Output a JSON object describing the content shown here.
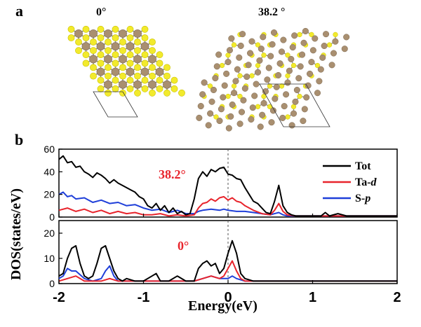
{
  "panel_a": {
    "label": "a",
    "left_structure_angle": "0°",
    "right_structure_angle": "38.2 °",
    "colors": {
      "metal_atom": "#a98f70",
      "chalcogen_atom": "#f2ea2c",
      "bond": "#8a8a8a",
      "unit_cell": "#333333"
    }
  },
  "panel_b": {
    "label": "b"
  },
  "chart_data": [
    {
      "type": "line",
      "annotation": "38.2°",
      "annotation_color": "#e8242c",
      "ylim": [
        0,
        60
      ],
      "yticks": [
        0,
        20,
        40,
        60
      ],
      "xlim": [
        -2,
        2
      ],
      "fermi_level": 0,
      "series": [
        {
          "name": "Tot",
          "color": "#000000",
          "x": [
            -2.0,
            -1.95,
            -1.9,
            -1.85,
            -1.8,
            -1.75,
            -1.7,
            -1.65,
            -1.6,
            -1.55,
            -1.5,
            -1.45,
            -1.4,
            -1.35,
            -1.3,
            -1.25,
            -1.2,
            -1.15,
            -1.1,
            -1.05,
            -1.0,
            -0.95,
            -0.9,
            -0.85,
            -0.8,
            -0.75,
            -0.7,
            -0.65,
            -0.6,
            -0.55,
            -0.5,
            -0.45,
            -0.4,
            -0.35,
            -0.3,
            -0.25,
            -0.2,
            -0.15,
            -0.1,
            -0.05,
            0.0,
            0.05,
            0.1,
            0.15,
            0.2,
            0.25,
            0.3,
            0.35,
            0.4,
            0.45,
            0.5,
            0.55,
            0.6,
            0.65,
            0.7,
            0.75,
            0.8,
            0.9,
            1.0,
            1.1,
            1.15,
            1.2,
            1.3,
            1.4,
            1.5,
            1.6,
            1.7,
            1.8,
            1.9,
            2.0
          ],
          "y": [
            51,
            54,
            48,
            49,
            44,
            45,
            40,
            38,
            35,
            39,
            37,
            34,
            30,
            33,
            30,
            28,
            26,
            24,
            22,
            18,
            16,
            10,
            8,
            12,
            6,
            10,
            4,
            8,
            3,
            5,
            2,
            3,
            16,
            34,
            40,
            36,
            42,
            40,
            43,
            44,
            38,
            37,
            34,
            33,
            26,
            20,
            14,
            12,
            8,
            4,
            3,
            14,
            28,
            10,
            4,
            2,
            1,
            1,
            1,
            1,
            4,
            1,
            3,
            1,
            1,
            1,
            1,
            1,
            1,
            1
          ]
        },
        {
          "name": "Ta-d",
          "color": "#e8242c",
          "x": [
            -2.0,
            -1.9,
            -1.8,
            -1.7,
            -1.6,
            -1.5,
            -1.4,
            -1.3,
            -1.2,
            -1.1,
            -1.0,
            -0.9,
            -0.8,
            -0.7,
            -0.6,
            -0.5,
            -0.4,
            -0.35,
            -0.3,
            -0.25,
            -0.2,
            -0.15,
            -0.1,
            -0.05,
            0.0,
            0.05,
            0.1,
            0.15,
            0.2,
            0.3,
            0.4,
            0.5,
            0.55,
            0.6,
            0.65,
            0.7,
            0.8,
            1.0,
            1.2,
            1.4,
            1.6,
            1.8,
            2.0
          ],
          "y": [
            6,
            8,
            5,
            7,
            4,
            6,
            3,
            5,
            3,
            4,
            2,
            2,
            3,
            1,
            2,
            1,
            2,
            8,
            12,
            13,
            16,
            14,
            17,
            18,
            15,
            17,
            14,
            13,
            10,
            6,
            3,
            2,
            6,
            12,
            5,
            2,
            1,
            1,
            1,
            1,
            1,
            1,
            1
          ]
        },
        {
          "name": "S-p",
          "color": "#1f3fd9",
          "x": [
            -2.0,
            -1.95,
            -1.9,
            -1.85,
            -1.8,
            -1.7,
            -1.6,
            -1.5,
            -1.4,
            -1.3,
            -1.2,
            -1.1,
            -1.0,
            -0.9,
            -0.8,
            -0.7,
            -0.6,
            -0.5,
            -0.4,
            -0.35,
            -0.3,
            -0.2,
            -0.1,
            -0.05,
            0.0,
            0.1,
            0.2,
            0.3,
            0.4,
            0.5,
            0.55,
            0.6,
            0.65,
            0.7,
            0.8,
            1.0,
            1.2,
            1.4,
            1.6,
            1.8,
            2.0
          ],
          "y": [
            20,
            22,
            18,
            19,
            16,
            17,
            13,
            15,
            12,
            13,
            10,
            11,
            8,
            6,
            7,
            4,
            6,
            3,
            3,
            5,
            6,
            7,
            6,
            7,
            6,
            5,
            5,
            4,
            3,
            2,
            3,
            4,
            2,
            1,
            1,
            1,
            1,
            1,
            1,
            1,
            1
          ]
        }
      ]
    },
    {
      "type": "line",
      "annotation": "0°",
      "annotation_color": "#e8242c",
      "ylim": [
        0,
        25
      ],
      "yticks": [
        0,
        10,
        20
      ],
      "xlim": [
        -2,
        2
      ],
      "xticks": [
        -2,
        -1,
        0,
        1,
        2
      ],
      "xlabel": "Energy(eV)",
      "ylabel": "DOS(states/eV)",
      "fermi_level": 0,
      "series": [
        {
          "name": "Tot",
          "color": "#000000",
          "x": [
            -2.0,
            -1.95,
            -1.9,
            -1.85,
            -1.8,
            -1.75,
            -1.7,
            -1.65,
            -1.6,
            -1.55,
            -1.5,
            -1.45,
            -1.4,
            -1.35,
            -1.3,
            -1.25,
            -1.2,
            -1.1,
            -1.0,
            -0.9,
            -0.85,
            -0.8,
            -0.7,
            -0.6,
            -0.5,
            -0.4,
            -0.35,
            -0.3,
            -0.25,
            -0.2,
            -0.15,
            -0.1,
            -0.05,
            0.0,
            0.05,
            0.1,
            0.15,
            0.2,
            0.3,
            0.4,
            0.5,
            0.6,
            0.8,
            1.0,
            1.2,
            1.4,
            1.6,
            1.8,
            2.0
          ],
          "y": [
            3,
            4,
            10,
            14,
            15,
            8,
            3,
            2,
            3,
            8,
            14,
            15,
            10,
            5,
            2,
            1,
            2,
            1,
            1,
            3,
            4,
            1,
            1,
            3,
            1,
            1,
            6,
            8,
            9,
            7,
            8,
            4,
            6,
            12,
            17,
            12,
            4,
            2,
            1,
            1,
            1,
            1,
            1,
            1,
            1,
            1,
            1,
            1,
            1
          ]
        },
        {
          "name": "Ta-d",
          "color": "#e8242c",
          "x": [
            -2.0,
            -1.9,
            -1.8,
            -1.7,
            -1.6,
            -1.5,
            -1.4,
            -1.3,
            -1.2,
            -1.0,
            -0.8,
            -0.6,
            -0.4,
            -0.3,
            -0.2,
            -0.1,
            -0.05,
            0.0,
            0.05,
            0.1,
            0.15,
            0.2,
            0.4,
            0.6,
            0.8,
            1.0,
            1.5,
            2.0
          ],
          "y": [
            1,
            2,
            3,
            1,
            1,
            1,
            2,
            1,
            1,
            1,
            1,
            1,
            1,
            2,
            3,
            2,
            3,
            6,
            9,
            5,
            2,
            1,
            1,
            1,
            1,
            1,
            1,
            1
          ]
        },
        {
          "name": "S-p",
          "color": "#1f3fd9",
          "x": [
            -2.0,
            -1.95,
            -1.9,
            -1.85,
            -1.8,
            -1.7,
            -1.6,
            -1.5,
            -1.45,
            -1.4,
            -1.35,
            -1.3,
            -1.2,
            -1.0,
            -0.8,
            -0.6,
            -0.4,
            -0.3,
            -0.2,
            -0.1,
            0.0,
            0.05,
            0.1,
            0.2,
            0.4,
            0.6,
            0.8,
            1.0,
            1.5,
            2.0
          ],
          "y": [
            2,
            3,
            6,
            5,
            5,
            2,
            1,
            2,
            5,
            7,
            3,
            1,
            1,
            1,
            1,
            1,
            1,
            2,
            3,
            2,
            2,
            3,
            2,
            1,
            1,
            1,
            1,
            1,
            1,
            1
          ]
        }
      ]
    }
  ]
}
